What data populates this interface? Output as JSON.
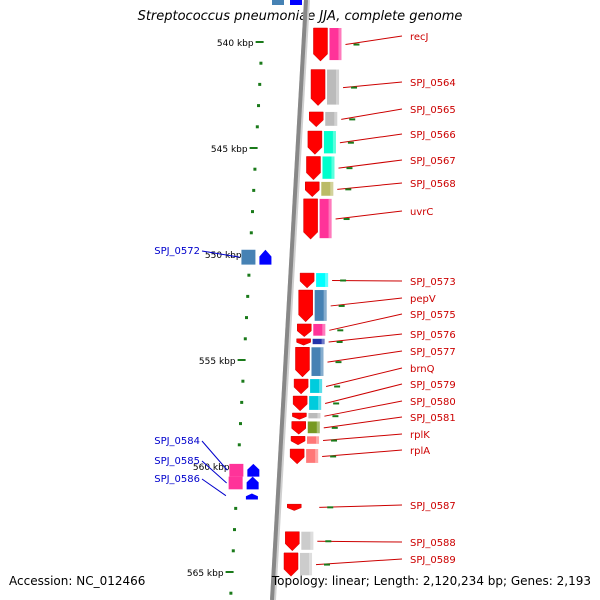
{
  "title": "Streptococcus pneumoniae JJA, complete genome",
  "footer": {
    "accession": "Accession: NC_012466",
    "topology": "Topology: linear; Length: 2,120,234 bp; Genes: 2,193"
  },
  "colors": {
    "backbone": "#888888",
    "tick": "#1a7a1a",
    "forward_gene": "#ff0000",
    "reverse_gene": "#0000ff",
    "forward_label": "#cc0000",
    "reverse_label": "#0000cc"
  },
  "scale": {
    "unit": "kbp",
    "labeled_ticks": [
      {
        "label": "540 kbp",
        "kbp": 540
      },
      {
        "label": "545 kbp",
        "kbp": 545
      },
      {
        "label": "550 kbp",
        "kbp": 550
      },
      {
        "label": "555 kbp",
        "kbp": 555
      },
      {
        "label": "560 kbp",
        "kbp": 560
      },
      {
        "label": "565 kbp",
        "kbp": 565
      }
    ]
  },
  "forward_genes": [
    {
      "name": "recJ",
      "start_kbp": 539.3,
      "end_kbp": 540.9,
      "cog": "#ff3399"
    },
    {
      "name": "SPJ_0564",
      "start_kbp": 541.3,
      "end_kbp": 543.0,
      "cog": "#bbbbbb"
    },
    {
      "name": "SPJ_0565",
      "start_kbp": 543.3,
      "end_kbp": 544.0,
      "cog": "#bbbbbb"
    },
    {
      "name": "SPJ_0566",
      "start_kbp": 544.2,
      "end_kbp": 545.3,
      "cog": "#00ffcc"
    },
    {
      "name": "SPJ_0567",
      "start_kbp": 545.4,
      "end_kbp": 546.5,
      "cog": "#00ffcc"
    },
    {
      "name": "SPJ_0568",
      "start_kbp": 546.6,
      "end_kbp": 547.3,
      "cog": "#bbbb66"
    },
    {
      "name": "uvrC",
      "start_kbp": 547.4,
      "end_kbp": 549.3,
      "cog": "#ff3399"
    },
    {
      "name": "SPJ_0573",
      "start_kbp": 550.9,
      "end_kbp": 551.6,
      "cog": "#00ffff"
    },
    {
      "name": "pepV",
      "start_kbp": 551.7,
      "end_kbp": 553.2,
      "cog": "#4682b4"
    },
    {
      "name": "SPJ_0575",
      "start_kbp": 553.3,
      "end_kbp": 553.9,
      "cog": "#ff3399"
    },
    {
      "name": "SPJ_0576",
      "start_kbp": 554.0,
      "end_kbp": 554.3,
      "cog": "#2233aa"
    },
    {
      "name": "SPJ_0577",
      "start_kbp": 554.4,
      "end_kbp": 555.8,
      "cog": "#4682b4"
    },
    {
      "name": "brnQ",
      "start_kbp": 555.9,
      "end_kbp": 556.6,
      "cog": "#00ccdd"
    },
    {
      "name": "SPJ_0579",
      "start_kbp": 556.7,
      "end_kbp": 557.4,
      "cog": "#00ccdd"
    },
    {
      "name": "SPJ_0580",
      "start_kbp": 557.5,
      "end_kbp": 557.8,
      "cog": "#bbbbbb"
    },
    {
      "name": "SPJ_0581",
      "start_kbp": 557.9,
      "end_kbp": 558.5,
      "cog": "#779922"
    },
    {
      "name": "rplK",
      "start_kbp": 558.6,
      "end_kbp": 559.0,
      "cog": "#ff7777"
    },
    {
      "name": "rplA",
      "start_kbp": 559.2,
      "end_kbp": 559.9,
      "cog": "#ff7777"
    },
    {
      "name": "SPJ_0587",
      "start_kbp": 561.8,
      "end_kbp": 562.1,
      "cog": ""
    },
    {
      "name": "SPJ_0588",
      "start_kbp": 563.1,
      "end_kbp": 564.0,
      "cog": "#cccccc"
    },
    {
      "name": "SPJ_0589",
      "start_kbp": 564.1,
      "end_kbp": 565.2,
      "cog": "#cccccc"
    }
  ],
  "reverse_genes": [
    {
      "name": "SPJ_0572",
      "start_kbp": 549.8,
      "end_kbp": 550.5,
      "cog": "#4682b4"
    },
    {
      "name": "SPJ_0584",
      "start_kbp": 559.9,
      "end_kbp": 560.5,
      "cog": "#ff3399"
    },
    {
      "name": "SPJ_0585",
      "start_kbp": 560.5,
      "end_kbp": 561.1,
      "cog": "#ff3399"
    },
    {
      "name": "SPJ_0586",
      "start_kbp": 561.3,
      "end_kbp": 561.5,
      "cog": ""
    }
  ]
}
